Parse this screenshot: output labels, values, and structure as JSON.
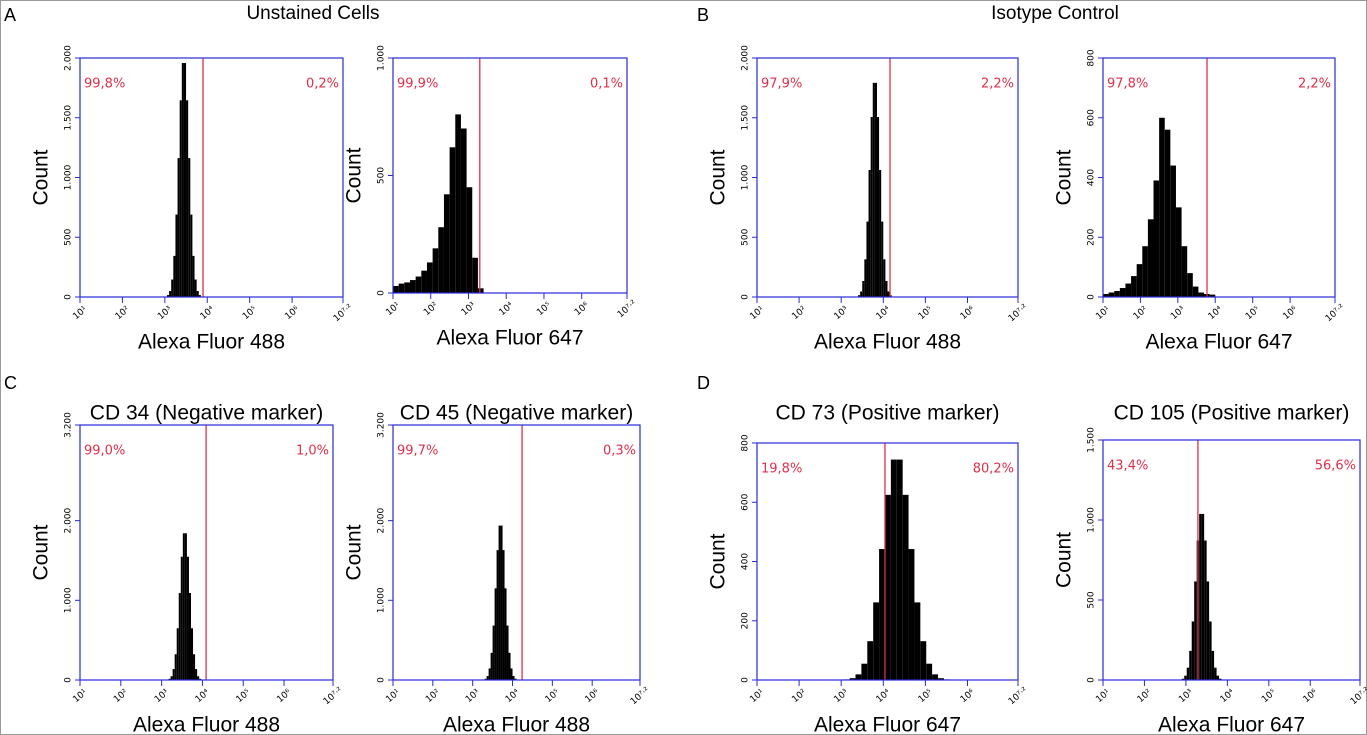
{
  "panel_labels": [
    "A",
    "B",
    "C",
    "D"
  ],
  "group_titles": [
    "Unstained Cells",
    "Isotype Control"
  ],
  "chart_data": [
    {
      "type": "histogram",
      "xlabel": "Alexa Fluor 488",
      "ylabel": "Count",
      "color": "#000000",
      "gate_color": "#e0304a",
      "xlim": [
        1,
        7.2
      ],
      "xticks": [
        {
          "value": 1,
          "label": "10¹"
        },
        {
          "value": 2,
          "label": "10²"
        },
        {
          "value": 3,
          "label": "10³"
        },
        {
          "value": 4,
          "label": "10⁴"
        },
        {
          "value": 5,
          "label": "10⁵"
        },
        {
          "value": 6,
          "label": "10⁶"
        },
        {
          "value": 7.2,
          "label": "10⁷·²"
        }
      ],
      "ylim": [
        0,
        2000
      ],
      "yticks": [
        0,
        500,
        {
          "value": 1000,
          "label": "1.000"
        },
        {
          "value": 1500,
          "label": "1.500"
        },
        {
          "value": 2000,
          "label": "2.000"
        }
      ],
      "gate": 3.9,
      "gate_labels": [
        "99,8%",
        "0,2%"
      ],
      "bins": [
        3.0,
        3.05,
        3.1,
        3.15,
        3.2,
        3.25,
        3.3,
        3.35,
        3.4,
        3.45,
        3.5,
        3.55,
        3.6,
        3.65,
        3.7,
        3.75,
        3.8,
        3.85,
        3.9
      ],
      "values": [
        4,
        16,
        50,
        146,
        344,
        690,
        1162,
        1646,
        1958,
        1958,
        1646,
        1162,
        690,
        344,
        146,
        50,
        16,
        4
      ]
    },
    {
      "type": "histogram",
      "xlabel": "Alexa Fluor 647",
      "ylabel": "Count",
      "color": "#000000",
      "gate_color": "#e0304a",
      "xlim": [
        1,
        7.2
      ],
      "xticks": [
        {
          "value": 1,
          "label": "10¹"
        },
        {
          "value": 2,
          "label": "10²"
        },
        {
          "value": 3,
          "label": "10³"
        },
        {
          "value": 4,
          "label": "10⁴"
        },
        {
          "value": 5,
          "label": "10⁵"
        },
        {
          "value": 6,
          "label": "10⁶"
        },
        {
          "value": 7.2,
          "label": "10⁷·²"
        }
      ],
      "ylim": [
        0,
        1000
      ],
      "yticks": [
        0,
        500,
        {
          "value": 1000,
          "label": "1.000"
        }
      ],
      "gate": 3.3,
      "gate_labels": [
        "99,9%",
        "0,1%"
      ],
      "bins": [
        1.0,
        1.15,
        1.3,
        1.45,
        1.6,
        1.75,
        1.9,
        2.05,
        2.2,
        2.35,
        2.5,
        2.65,
        2.8,
        2.95,
        3.1,
        3.25,
        3.4
      ],
      "values": [
        30,
        40,
        45,
        55,
        70,
        95,
        130,
        190,
        280,
        420,
        620,
        760,
        700,
        450,
        150,
        20
      ]
    },
    {
      "type": "histogram",
      "xlabel": "Alexa Fluor 488",
      "ylabel": "Count",
      "color": "#000000",
      "gate_color": "#e0304a",
      "xlim": [
        1,
        7.2
      ],
      "xticks": [
        {
          "value": 1,
          "label": "10¹"
        },
        {
          "value": 2,
          "label": "10²"
        },
        {
          "value": 3,
          "label": "10³"
        },
        {
          "value": 4,
          "label": "10⁴"
        },
        {
          "value": 5,
          "label": "10⁵"
        },
        {
          "value": 6,
          "label": "10⁶"
        },
        {
          "value": 7.2,
          "label": "10⁷·²"
        }
      ],
      "ylim": [
        0,
        2000
      ],
      "yticks": [
        0,
        500,
        {
          "value": 1000,
          "label": "1.000"
        },
        {
          "value": 1500,
          "label": "1.500"
        },
        {
          "value": 2000,
          "label": "2.000"
        }
      ],
      "gate": 4.16,
      "gate_labels": [
        "97,9%",
        "2,2%"
      ],
      "bins": [
        3.35,
        3.4,
        3.45,
        3.5,
        3.55,
        3.6,
        3.65,
        3.7,
        3.75,
        3.8,
        3.85,
        3.9,
        3.95,
        4.0,
        4.05,
        4.1,
        4.15,
        4.2,
        4.25
      ],
      "values": [
        4,
        15,
        46,
        134,
        315,
        631,
        1063,
        1506,
        1792,
        1792,
        1506,
        1063,
        631,
        315,
        134,
        46,
        15,
        4
      ]
    },
    {
      "type": "histogram",
      "xlabel": "Alexa Fluor 647",
      "ylabel": "Count",
      "color": "#000000",
      "gate_color": "#e0304a",
      "xlim": [
        1,
        7.2
      ],
      "xticks": [
        {
          "value": 1,
          "label": "10¹"
        },
        {
          "value": 2,
          "label": "10²"
        },
        {
          "value": 3,
          "label": "10³"
        },
        {
          "value": 4,
          "label": "10⁴"
        },
        {
          "value": 5,
          "label": "10⁵"
        },
        {
          "value": 6,
          "label": "10⁶"
        },
        {
          "value": 7.2,
          "label": "10⁷·²"
        }
      ],
      "ylim": [
        0,
        800
      ],
      "yticks": [
        0,
        200,
        400,
        600,
        800
      ],
      "gate": 3.78,
      "gate_labels": [
        "97,8%",
        "2,2%"
      ],
      "bins": [
        1.0,
        1.15,
        1.3,
        1.45,
        1.6,
        1.75,
        1.9,
        2.05,
        2.2,
        2.35,
        2.5,
        2.65,
        2.8,
        2.95,
        3.1,
        3.25,
        3.4,
        3.55,
        3.7,
        3.85,
        4.0
      ],
      "values": [
        10,
        15,
        20,
        30,
        45,
        70,
        110,
        170,
        260,
        390,
        600,
        560,
        440,
        300,
        170,
        80,
        35,
        15,
        10,
        8
      ]
    },
    {
      "type": "histogram",
      "title": "CD 34 (Negative marker)",
      "xlabel": "Alexa Fluor 488",
      "ylabel": "Count",
      "color": "#000000",
      "gate_color": "#e0304a",
      "xlim": [
        1,
        7.2
      ],
      "xticks": [
        {
          "value": 1,
          "label": "10¹"
        },
        {
          "value": 2,
          "label": "10²"
        },
        {
          "value": 3,
          "label": "10³"
        },
        {
          "value": 4,
          "label": "10⁴"
        },
        {
          "value": 5,
          "label": "10⁵"
        },
        {
          "value": 6,
          "label": "10⁶"
        },
        {
          "value": 7.2,
          "label": "10⁷·²"
        }
      ],
      "ylim": [
        0,
        3200
      ],
      "yticks": [
        0,
        {
          "value": 1000,
          "label": "1.000"
        },
        {
          "value": 2000,
          "label": "2.000"
        },
        {
          "value": 3200,
          "label": "3.200"
        }
      ],
      "gate": 4.09,
      "gate_labels": [
        "99,0%",
        "1,0%"
      ],
      "bins": [
        3.12,
        3.17,
        3.22,
        3.27,
        3.32,
        3.37,
        3.42,
        3.47,
        3.52,
        3.57,
        3.62,
        3.67,
        3.72,
        3.77,
        3.82,
        3.87,
        3.92,
        3.97,
        4.02
      ],
      "values": [
        4,
        15,
        47,
        137,
        323,
        649,
        1092,
        1547,
        1841,
        1841,
        1547,
        1092,
        649,
        323,
        137,
        47,
        15,
        4
      ]
    },
    {
      "type": "histogram",
      "title": "CD 45 (Negative marker)",
      "xlabel": "Alexa Fluor 488",
      "ylabel": "Count",
      "color": "#000000",
      "gate_color": "#e0304a",
      "xlim": [
        1,
        7.2
      ],
      "xticks": [
        {
          "value": 1,
          "label": "10¹"
        },
        {
          "value": 2,
          "label": "10²"
        },
        {
          "value": 3,
          "label": "10³"
        },
        {
          "value": 4,
          "label": "10⁴"
        },
        {
          "value": 5,
          "label": "10⁵"
        },
        {
          "value": 6,
          "label": "10⁶"
        },
        {
          "value": 7.2,
          "label": "10⁷·²"
        }
      ],
      "ylim": [
        0,
        3200
      ],
      "yticks": [
        0,
        {
          "value": 1000,
          "label": "1.000"
        },
        {
          "value": 2000,
          "label": "2.000"
        },
        {
          "value": 3200,
          "label": "3.200"
        }
      ],
      "gate": 4.24,
      "gate_labels": [
        "99,7%",
        "0,3%"
      ],
      "bins": [
        3.25,
        3.3,
        3.35,
        3.4,
        3.45,
        3.5,
        3.55,
        3.6,
        3.65,
        3.7,
        3.75,
        3.8,
        3.85,
        3.9,
        3.95,
        4.0,
        4.05,
        4.1,
        4.15
      ],
      "values": [
        4,
        16,
        50,
        145,
        341,
        683,
        1150,
        1630,
        1938,
        1938,
        1630,
        1150,
        683,
        341,
        145,
        50,
        16,
        4
      ]
    },
    {
      "type": "histogram",
      "title": "CD 73 (Positive marker)",
      "xlabel": "Alexa Fluor 647",
      "ylabel": "Count",
      "color": "#000000",
      "gate_color": "#e0304a",
      "xlim": [
        1,
        7.2
      ],
      "xticks": [
        {
          "value": 1,
          "label": "10¹"
        },
        {
          "value": 2,
          "label": "10²"
        },
        {
          "value": 3,
          "label": "10³"
        },
        {
          "value": 4,
          "label": "10⁴"
        },
        {
          "value": 5,
          "label": "10⁵"
        },
        {
          "value": 6,
          "label": "10⁶"
        },
        {
          "value": 7.2,
          "label": "10⁷·²"
        }
      ],
      "ylim": [
        0,
        800
      ],
      "yticks": [
        0,
        200,
        400,
        600,
        800
      ],
      "gate": 4.04,
      "gate_labels": [
        "19,8%",
        "80,2%"
      ],
      "bins": [
        3.06,
        3.2,
        3.34,
        3.48,
        3.62,
        3.76,
        3.9,
        4.04,
        4.18,
        4.32,
        4.46,
        4.6,
        4.74,
        4.88,
        5.02,
        5.16,
        5.3,
        5.44,
        5.58
      ],
      "values": [
        2,
        6,
        19,
        55,
        131,
        262,
        442,
        625,
        744,
        744,
        625,
        442,
        262,
        131,
        55,
        19,
        6,
        2
      ]
    },
    {
      "type": "histogram",
      "title": "CD 105 (Positive marker)",
      "xlabel": "Alexa Fluor 647",
      "ylabel": "Count",
      "color": "#000000",
      "gate_color": "#e0304a",
      "xlim": [
        1,
        7.2
      ],
      "xticks": [
        {
          "value": 1,
          "label": "10¹"
        },
        {
          "value": 2,
          "label": "10²"
        },
        {
          "value": 3,
          "label": "10³"
        },
        {
          "value": 4,
          "label": "10⁴"
        },
        {
          "value": 5,
          "label": "10⁵"
        },
        {
          "value": 6,
          "label": "10⁶"
        },
        {
          "value": 7.2,
          "label": "10⁷·²"
        }
      ],
      "ylim": [
        0,
        1500
      ],
      "yticks": [
        0,
        500,
        {
          "value": 1000,
          "label": "1.000"
        },
        {
          "value": 1500,
          "label": "1.500"
        }
      ],
      "gate": 3.29,
      "gate_labels": [
        "43,4%",
        "56,6%"
      ],
      "bins": [
        2.84,
        2.9,
        2.96,
        3.02,
        3.08,
        3.14,
        3.2,
        3.26,
        3.32,
        3.38,
        3.44,
        3.5,
        3.56,
        3.62,
        3.68,
        3.74,
        3.8,
        3.86,
        3.92
      ],
      "values": [
        2,
        8,
        27,
        77,
        182,
        366,
        616,
        872,
        1038,
        1038,
        872,
        616,
        366,
        182,
        77,
        27,
        8,
        2
      ]
    }
  ]
}
